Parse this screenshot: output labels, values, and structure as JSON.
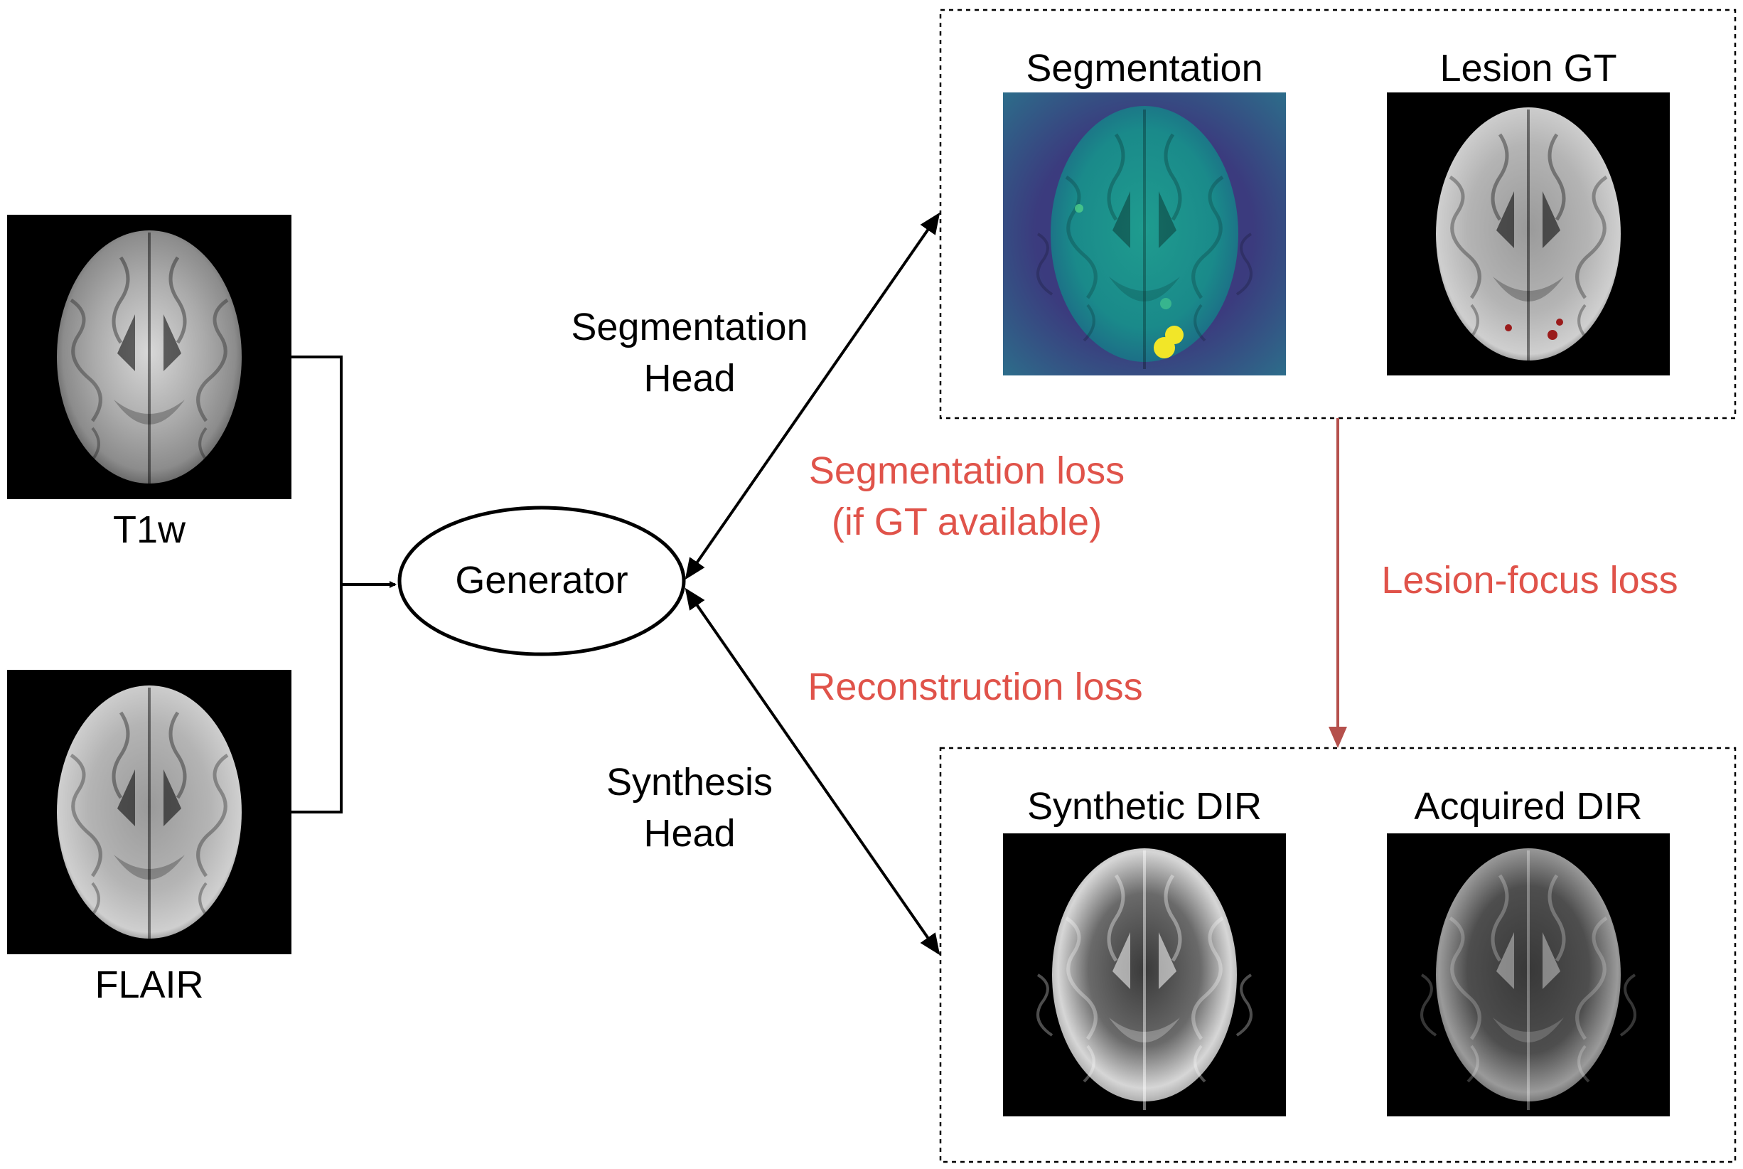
{
  "inputs": {
    "t1w_label": "T1w",
    "flair_label": "FLAIR"
  },
  "generator": {
    "label": "Generator"
  },
  "heads": {
    "segmentation_line1": "Segmentation",
    "segmentation_line2": "Head",
    "synthesis_line1": "Synthesis",
    "synthesis_line2": "Head"
  },
  "losses": {
    "segmentation_line1": "Segmentation loss",
    "segmentation_line2": "(if GT available)",
    "reconstruction": "Reconstruction loss",
    "lesion_focus": "Lesion-focus loss"
  },
  "outputs": {
    "segmentation_title": "Segmentation",
    "lesion_gt_title": "Lesion GT",
    "synthetic_dir_title": "Synthetic DIR",
    "acquired_dir_title": "Acquired DIR"
  },
  "colors": {
    "loss_text": "#e0534a",
    "lesion_arrow": "#b5504c",
    "seg_background": "#2d6c8a",
    "seg_outer": "#3b3b7e",
    "seg_brain": "#1f9c8f",
    "lesion_highlight": "#f2e628",
    "lesion_gt_mark": "#9a1b1b"
  }
}
